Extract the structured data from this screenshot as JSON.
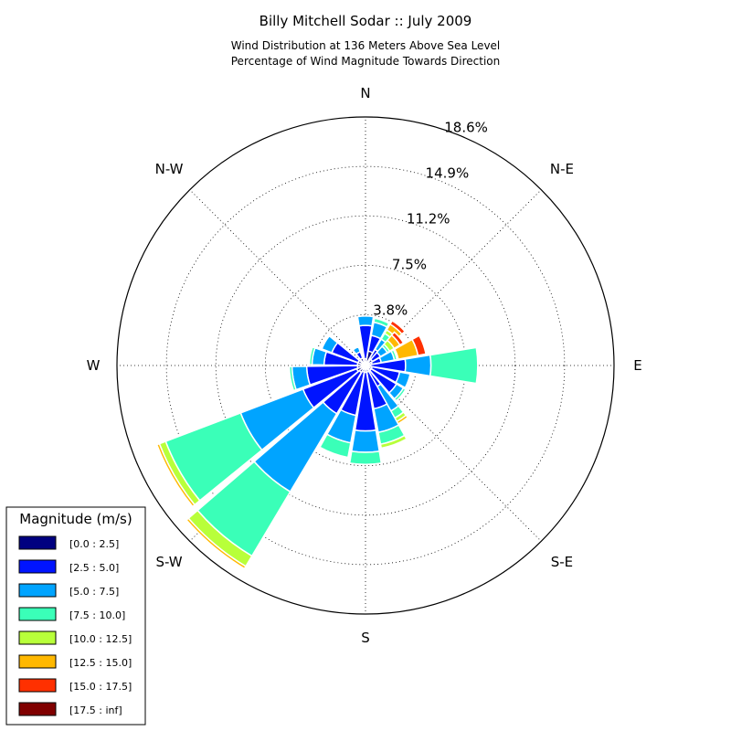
{
  "chart_data": {
    "type": "windrose",
    "title": "Billy Mitchell Sodar :: July 2009",
    "subtitle_line1": "Wind Distribution at 136 Meters Above Sea Level",
    "subtitle_line2": "Percentage of Wind Magnitude Towards Direction",
    "radial_max": 18.6,
    "radial_ticks": [
      3.8,
      7.5,
      11.2,
      14.9,
      18.6
    ],
    "radial_tick_labels": [
      "3.8%",
      "7.5%",
      "11.2%",
      "14.9%",
      "18.6%"
    ],
    "direction_labels": [
      {
        "label": "N",
        "angle": 0
      },
      {
        "label": "N-E",
        "angle": 45
      },
      {
        "label": "E",
        "angle": 90
      },
      {
        "label": "S-E",
        "angle": 135
      },
      {
        "label": "S",
        "angle": 180
      },
      {
        "label": "S-W",
        "angle": 225
      },
      {
        "label": "W",
        "angle": 270
      },
      {
        "label": "N-W",
        "angle": 315
      }
    ],
    "grid": true,
    "bins": [
      {
        "label": "[0.0 : 2.5]",
        "color": "#000080"
      },
      {
        "label": "[2.5 : 5.0]",
        "color": "#0014ff"
      },
      {
        "label": "[5.0 : 7.5]",
        "color": "#00a4ff"
      },
      {
        "label": "[7.5 : 10.0]",
        "color": "#3affb8"
      },
      {
        "label": "[10.0 : 12.5]",
        "color": "#b8ff3a"
      },
      {
        "label": "[12.5 : 15.0]",
        "color": "#ffb800"
      },
      {
        "label": "[15.0 : 17.5]",
        "color": "#ff3000"
      },
      {
        "label": "[17.5 : inf]",
        "color": "#800000"
      }
    ],
    "sector_width_deg": 20,
    "sectors": [
      {
        "angle": 0,
        "cumulative": [
          0.5,
          3.0,
          3.7
        ]
      },
      {
        "angle": 20,
        "cumulative": [
          1.1,
          2.3,
          3.3,
          3.6
        ]
      },
      {
        "angle": 40,
        "cumulative": [
          0.6,
          1.4,
          2.3,
          2.8,
          3.1,
          3.6,
          3.9
        ]
      },
      {
        "angle": 50,
        "cumulative": [
          0.6,
          1.3,
          1.9,
          2.1,
          2.5,
          3.0,
          3.3
        ]
      },
      {
        "angle": 70,
        "cumulative": [
          0.5,
          1.2,
          2.2,
          2.4,
          2.5,
          4.0,
          4.6
        ]
      },
      {
        "angle": 90,
        "cumulative": [
          0.4,
          3.0,
          4.9,
          8.4
        ]
      },
      {
        "angle": 110,
        "cumulative": [
          0.5,
          2.6,
          3.4
        ]
      },
      {
        "angle": 130,
        "cumulative": [
          0.5,
          2.7,
          3.3,
          3.5
        ]
      },
      {
        "angle": 150,
        "cumulative": [
          0.5,
          1.8,
          3.9,
          4.5,
          4.8,
          5.0
        ]
      },
      {
        "angle": 160,
        "cumulative": [
          0.5,
          3.3,
          5.1,
          6.0,
          6.3
        ]
      },
      {
        "angle": 180,
        "cumulative": [
          0.5,
          4.9,
          6.5,
          7.4
        ]
      },
      {
        "angle": 200,
        "cumulative": [
          0.5,
          3.8,
          5.9,
          7.0
        ]
      },
      {
        "angle": 220,
        "cumulative": [
          0.6,
          4.2,
          11.0,
          16.6,
          17.5,
          17.7
        ]
      },
      {
        "angle": 240,
        "cumulative": [
          0.7,
          5.0,
          10.0,
          16.0,
          16.5,
          16.7
        ]
      },
      {
        "angle": 260,
        "cumulative": [
          0.6,
          4.4,
          5.5,
          5.7
        ]
      },
      {
        "angle": 280,
        "cumulative": [
          0.6,
          3.1,
          4.0,
          4.2
        ]
      },
      {
        "angle": 300,
        "cumulative": [
          0.6,
          2.7,
          3.5,
          3.6
        ]
      },
      {
        "angle": 330,
        "cumulative": [
          0.6,
          1.1,
          1.5
        ]
      }
    ]
  },
  "legend": {
    "title": "Magnitude (m/s)"
  }
}
